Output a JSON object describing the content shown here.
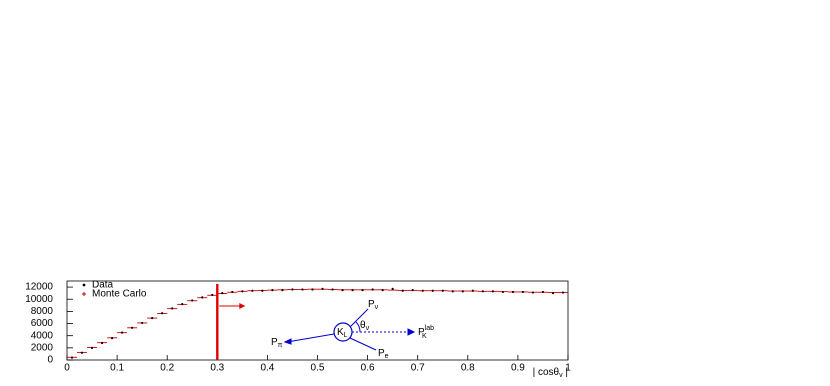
{
  "chart_data": {
    "type": "histogram",
    "bins": [
      0,
      0.02,
      0.04,
      0.06,
      0.08,
      0.1,
      0.12,
      0.14,
      0.16,
      0.18,
      0.2,
      0.22,
      0.24,
      0.26,
      0.28,
      0.3,
      0.32,
      0.34,
      0.36,
      0.38,
      0.4,
      0.42,
      0.44,
      0.46,
      0.48,
      0.5,
      0.52,
      0.54,
      0.56,
      0.58,
      0.6,
      0.62,
      0.64,
      0.66,
      0.68,
      0.7,
      0.72,
      0.74,
      0.76,
      0.78,
      0.8,
      0.82,
      0.84,
      0.86,
      0.88,
      0.9,
      0.92,
      0.94,
      0.96,
      0.98,
      1
    ],
    "series": [
      {
        "name": "Data",
        "color": "#000000",
        "values": [
          400,
          1200,
          2000,
          2800,
          3600,
          4500,
          5300,
          6100,
          6900,
          7700,
          8500,
          9200,
          9800,
          10300,
          10700,
          11000,
          11200,
          11300,
          11400,
          11400,
          11500,
          11500,
          11600,
          11600,
          11600,
          11700,
          11600,
          11500,
          11500,
          11500,
          11600,
          11500,
          11700,
          11400,
          11500,
          11400,
          11400,
          11400,
          11300,
          11300,
          11400,
          11300,
          11300,
          11200,
          11200,
          11200,
          11100,
          11200,
          11000,
          11100
        ]
      },
      {
        "name": "Monte Carlo",
        "color": "#cc0000",
        "values": [
          450,
          1250,
          2050,
          2850,
          3650,
          4500,
          5300,
          6100,
          6900,
          7650,
          8450,
          9150,
          9750,
          10250,
          10650,
          10950,
          11150,
          11300,
          11400,
          11450,
          11500,
          11550,
          11600,
          11600,
          11650,
          11650,
          11600,
          11550,
          11550,
          11550,
          11550,
          11550,
          11500,
          11450,
          11450,
          11400,
          11400,
          11400,
          11350,
          11350,
          11350,
          11300,
          11300,
          11250,
          11200,
          11200,
          11150,
          11150,
          11100,
          11100
        ]
      }
    ],
    "xlabel": {
      "base": "| cosθ",
      "sub": "v",
      "after": " |"
    },
    "xlim": [
      0,
      1
    ],
    "ylim": [
      0,
      13000
    ],
    "xticks": [
      0,
      0.1,
      0.2,
      0.3,
      0.4,
      0.5,
      0.6,
      0.7,
      0.8,
      0.9,
      1
    ],
    "yticks": [
      0,
      2000,
      4000,
      6000,
      8000,
      10000,
      12000
    ],
    "cut": 0.3,
    "annotations": [
      {
        "base": "P",
        "sub": "ν"
      },
      {
        "base": "θ",
        "sub": "ν"
      },
      {
        "base": "K",
        "sub": "L"
      },
      {
        "base": "P",
        "sub": "K",
        "sup": "lab"
      },
      {
        "base": "P",
        "sub": "π"
      },
      {
        "base": "P",
        "sub": "e"
      }
    ]
  }
}
